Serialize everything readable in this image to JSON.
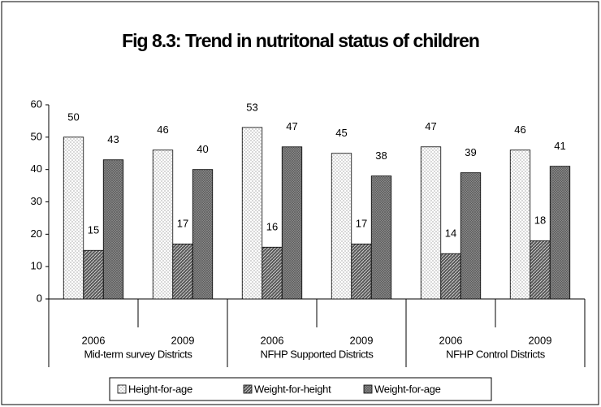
{
  "chart_data": {
    "type": "bar",
    "title": "Fig 8.3: Trend in nutritonal status of children",
    "categories": [
      "2006",
      "2009",
      "2006",
      "2009",
      "2006",
      "2009"
    ],
    "groups": [
      "Mid-term survey Districts",
      "NFHP Supported Districts",
      "NFHP Control Districts"
    ],
    "series": [
      {
        "name": "Height-for-age",
        "color": "#ffffff",
        "values": [
          50,
          46,
          53,
          45,
          47,
          46
        ]
      },
      {
        "name": "Weight-for-height",
        "color": "#5a5a5a",
        "values": [
          15,
          17,
          16,
          17,
          14,
          18
        ]
      },
      {
        "name": "Weight-for-age",
        "color": "#8c8c8c",
        "values": [
          43,
          40,
          47,
          38,
          39,
          41
        ]
      }
    ],
    "ylim": [
      0,
      60
    ],
    "yticks": [
      0,
      10,
      20,
      30,
      40,
      50,
      60
    ],
    "grid": false,
    "legend": "bottom"
  }
}
